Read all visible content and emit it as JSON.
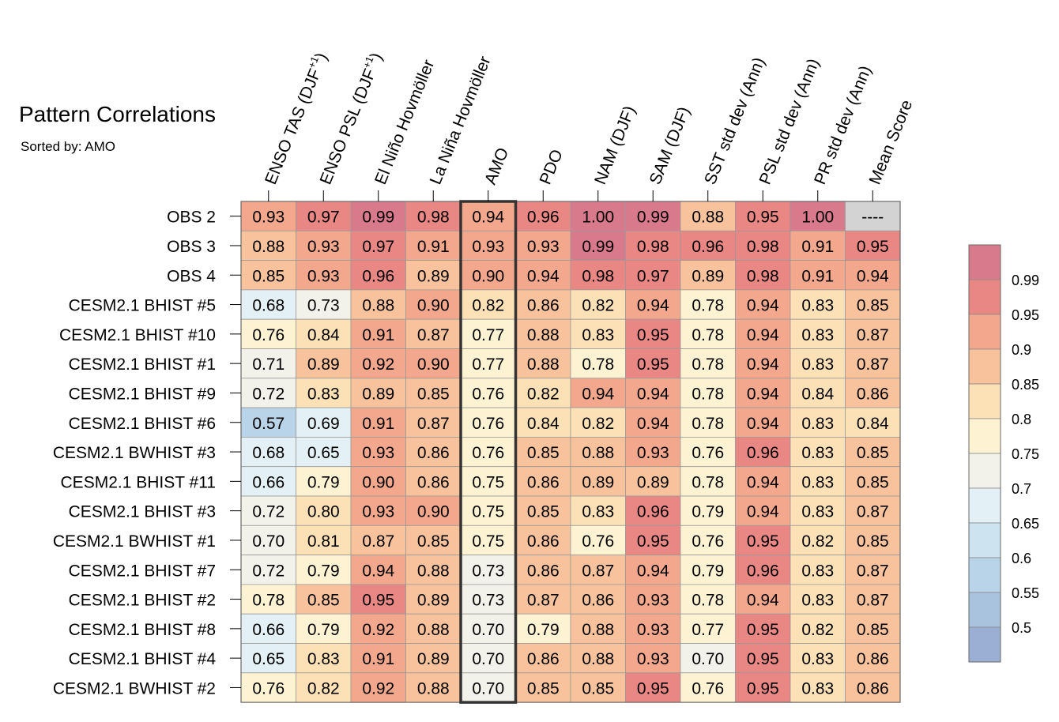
{
  "chart_data": {
    "type": "heatmap",
    "title": "Pattern Correlations",
    "subtitle": "Sorted by: AMO",
    "highlighted_column": "AMO",
    "columns": [
      "ENSO TAS (DJF+1)",
      "ENSO PSL (DJF+1)",
      "El Niño Hovmöller",
      "La Niña Hovmöller",
      "AMO",
      "PDO",
      "NAM (DJF)",
      "SAM (DJF)",
      "SST std dev (Ann)",
      "PSL std dev (Ann)",
      "PR std dev (Ann)",
      "Mean Score"
    ],
    "rows": [
      "OBS 2",
      "OBS 3",
      "OBS 4",
      "CESM2.1 BHIST #5",
      "CESM2.1 BHIST #10",
      "CESM2.1 BHIST #1",
      "CESM2.1 BHIST #9",
      "CESM2.1 BHIST #6",
      "CESM2.1 BWHIST #3",
      "CESM2.1 BHIST #11",
      "CESM2.1 BHIST #3",
      "CESM2.1 BWHIST #1",
      "CESM2.1 BHIST #7",
      "CESM2.1 BHIST #2",
      "CESM2.1 BHIST #8",
      "CESM2.1 BHIST #4",
      "CESM2.1 BWHIST #2"
    ],
    "values": [
      [
        "0.93",
        "0.97",
        "0.99",
        "0.98",
        "0.94",
        "0.96",
        "1.00",
        "0.99",
        "0.88",
        "0.95",
        "1.00",
        "----"
      ],
      [
        "0.88",
        "0.93",
        "0.97",
        "0.91",
        "0.93",
        "0.93",
        "0.99",
        "0.98",
        "0.96",
        "0.98",
        "0.91",
        "0.95"
      ],
      [
        "0.85",
        "0.93",
        "0.96",
        "0.89",
        "0.90",
        "0.94",
        "0.98",
        "0.97",
        "0.89",
        "0.98",
        "0.91",
        "0.94"
      ],
      [
        "0.68",
        "0.73",
        "0.88",
        "0.90",
        "0.82",
        "0.86",
        "0.82",
        "0.94",
        "0.78",
        "0.94",
        "0.83",
        "0.85"
      ],
      [
        "0.76",
        "0.84",
        "0.91",
        "0.87",
        "0.77",
        "0.88",
        "0.83",
        "0.95",
        "0.78",
        "0.94",
        "0.83",
        "0.87"
      ],
      [
        "0.71",
        "0.89",
        "0.92",
        "0.90",
        "0.77",
        "0.88",
        "0.78",
        "0.95",
        "0.78",
        "0.94",
        "0.83",
        "0.87"
      ],
      [
        "0.72",
        "0.83",
        "0.89",
        "0.85",
        "0.76",
        "0.82",
        "0.94",
        "0.94",
        "0.78",
        "0.94",
        "0.84",
        "0.86"
      ],
      [
        "0.57",
        "0.69",
        "0.91",
        "0.87",
        "0.76",
        "0.84",
        "0.82",
        "0.94",
        "0.78",
        "0.94",
        "0.83",
        "0.84"
      ],
      [
        "0.68",
        "0.65",
        "0.93",
        "0.86",
        "0.76",
        "0.85",
        "0.88",
        "0.93",
        "0.76",
        "0.96",
        "0.83",
        "0.85"
      ],
      [
        "0.66",
        "0.79",
        "0.90",
        "0.86",
        "0.75",
        "0.86",
        "0.89",
        "0.89",
        "0.78",
        "0.94",
        "0.83",
        "0.85"
      ],
      [
        "0.72",
        "0.80",
        "0.93",
        "0.90",
        "0.75",
        "0.85",
        "0.83",
        "0.96",
        "0.79",
        "0.94",
        "0.83",
        "0.87"
      ],
      [
        "0.70",
        "0.81",
        "0.87",
        "0.85",
        "0.75",
        "0.86",
        "0.76",
        "0.95",
        "0.76",
        "0.95",
        "0.82",
        "0.85"
      ],
      [
        "0.72",
        "0.79",
        "0.94",
        "0.88",
        "0.73",
        "0.86",
        "0.87",
        "0.94",
        "0.79",
        "0.96",
        "0.83",
        "0.87"
      ],
      [
        "0.78",
        "0.85",
        "0.95",
        "0.89",
        "0.73",
        "0.87",
        "0.86",
        "0.93",
        "0.78",
        "0.94",
        "0.83",
        "0.87"
      ],
      [
        "0.66",
        "0.79",
        "0.92",
        "0.88",
        "0.70",
        "0.79",
        "0.88",
        "0.93",
        "0.77",
        "0.95",
        "0.82",
        "0.85"
      ],
      [
        "0.65",
        "0.83",
        "0.91",
        "0.89",
        "0.70",
        "0.86",
        "0.88",
        "0.93",
        "0.70",
        "0.95",
        "0.83",
        "0.86"
      ],
      [
        "0.76",
        "0.82",
        "0.92",
        "0.88",
        "0.70",
        "0.85",
        "0.85",
        "0.95",
        "0.76",
        "0.95",
        "0.83",
        "0.86"
      ]
    ],
    "missing_value_color": "#d3d3d3",
    "colorbar": {
      "levels": [
        0.5,
        0.55,
        0.6,
        0.65,
        0.7,
        0.75,
        0.8,
        0.85,
        0.9,
        0.95,
        0.99
      ],
      "labels": [
        "0.5",
        "0.55",
        "0.6",
        "0.65",
        "0.7",
        "0.75",
        "0.8",
        "0.85",
        "0.9",
        "0.95",
        "0.99"
      ],
      "colors": [
        "#9aafd3",
        "#a9c2de",
        "#b9d4e8",
        "#cde3f0",
        "#e3f0f5",
        "#f2f2ea",
        "#fdf3d2",
        "#fde1b6",
        "#f8c39c",
        "#f3a88d",
        "#e98784",
        "#d97a8c"
      ]
    }
  }
}
